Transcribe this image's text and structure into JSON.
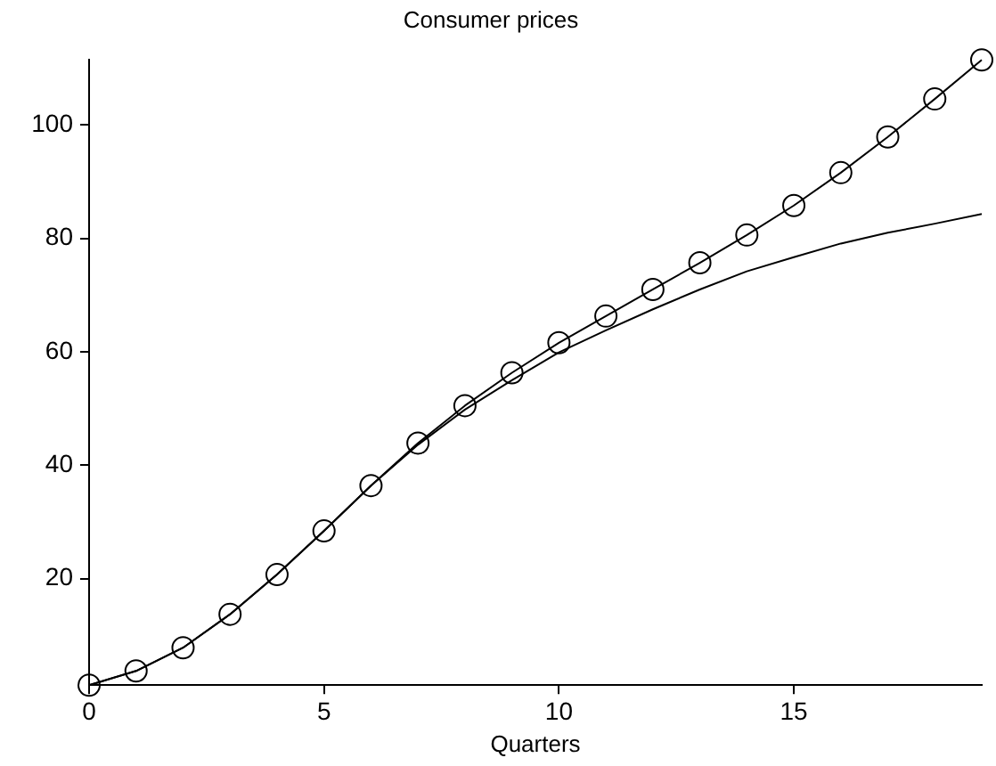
{
  "chart_data": {
    "type": "line",
    "title": "Consumer prices",
    "xlabel": "Quarters",
    "x": [
      0,
      1,
      2,
      3,
      4,
      5,
      6,
      7,
      8,
      9,
      10,
      11,
      12,
      13,
      14,
      15,
      16,
      17,
      18,
      19
    ],
    "series": [
      {
        "color": "#000000",
        "marker": "circle",
        "values": [
          1.2,
          3.7,
          7.8,
          13.7,
          20.7,
          28.4,
          36.4,
          43.9,
          50.5,
          56.3,
          61.6,
          66.3,
          71,
          75.7,
          80.6,
          85.8,
          91.6,
          97.9,
          104.6,
          111.5
        ]
      },
      {
        "color": "#000000",
        "marker": "none",
        "values": [
          1.2,
          3.7,
          7.8,
          13.7,
          20.7,
          28.4,
          36.4,
          43.6,
          49.8,
          55,
          59.9,
          63.8,
          67.5,
          71,
          74.2,
          76.7,
          79.1,
          81,
          82.6,
          84.3
        ]
      }
    ],
    "xlim": [
      0,
      19
    ],
    "xticks": [
      0,
      5,
      10,
      15
    ],
    "ylim": [
      1.2,
      111.5
    ],
    "yticks": [
      20,
      40,
      60,
      80,
      100
    ],
    "grid": false,
    "legend": false
  }
}
